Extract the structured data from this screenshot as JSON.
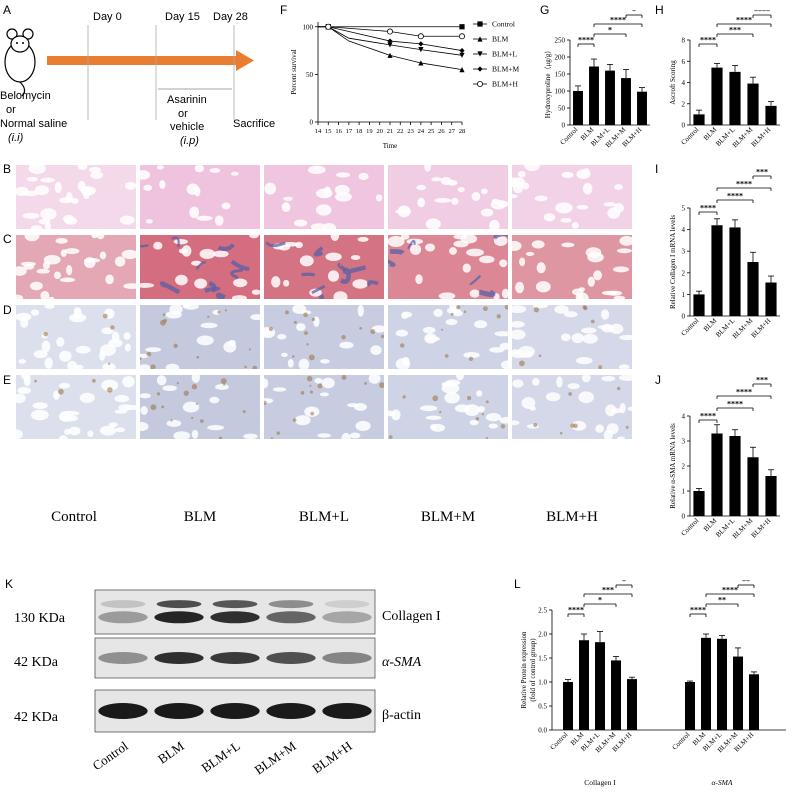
{
  "panel_labels": {
    "A": "A",
    "B": "B",
    "C": "C",
    "D": "D",
    "E": "E",
    "F": "F",
    "G": "G",
    "H": "H",
    "I": "I",
    "J": "J",
    "K": "K",
    "L": "L"
  },
  "timeline": {
    "days": [
      "Day 0",
      "Day 15",
      "Day 28"
    ],
    "bleo": [
      "Belomycin",
      "or",
      "Normal saline",
      "(i.i)"
    ],
    "asarinin": [
      "Asarinin",
      "or",
      "vehicle",
      "(i.p)"
    ],
    "sacrifice": "Sacrifice"
  },
  "group_labels": [
    "Control",
    "BLM",
    "BLM+L",
    "BLM+M",
    "BLM+H"
  ],
  "colors": {
    "arrow": "#e97d32",
    "he": "#e9a9cf",
    "masson_red": "#c53a52",
    "masson_blue": "#4d5fa8",
    "ihc": "#d9dbe8",
    "brown": "#9c6d3e"
  },
  "western": {
    "kda": [
      "130 KDa",
      "42 KDa",
      "42 KDa"
    ],
    "proteins": [
      "Collagen I",
      "α-SMA",
      "β-actin"
    ],
    "lanes": [
      "Control",
      "BLM",
      "BLM+L",
      "BLM+M",
      "BLM+H"
    ],
    "band_intensity": [
      [
        0.35,
        0.9,
        0.85,
        0.6,
        0.3
      ],
      [
        0.4,
        0.85,
        0.8,
        0.7,
        0.45
      ],
      [
        0.95,
        0.95,
        0.95,
        0.95,
        0.95
      ]
    ]
  },
  "chart_data": [
    {
      "id": "F",
      "type": "line",
      "xlabel": "Time",
      "ylabel": "Percent survival",
      "x": [
        14,
        15,
        16,
        17,
        18,
        19,
        20,
        21,
        22,
        23,
        24,
        25,
        26,
        27,
        28
      ],
      "xticks": [
        "14",
        "15",
        "16",
        "17",
        "18",
        "19",
        "20",
        "21",
        "22",
        "23",
        "24",
        "25",
        "26",
        "27",
        "28"
      ],
      "ylim": [
        0,
        105
      ],
      "yticks": [
        "0",
        "50",
        "100"
      ],
      "series": [
        {
          "name": "Control",
          "marker": "square",
          "x": [
            14,
            15,
            28
          ],
          "values": [
            100,
            100,
            100
          ]
        },
        {
          "name": "BLM",
          "marker": "triangle-up",
          "x": [
            14,
            15,
            17,
            21,
            24,
            28
          ],
          "values": [
            100,
            100,
            85,
            70,
            62,
            55
          ]
        },
        {
          "name": "BLM+L",
          "marker": "triangle-down",
          "x": [
            14,
            15,
            16,
            17,
            21,
            24,
            28
          ],
          "values": [
            100,
            100,
            94,
            88,
            81,
            76,
            70
          ]
        },
        {
          "name": "BLM+M",
          "marker": "diamond",
          "x": [
            14,
            15,
            17,
            21,
            24,
            28
          ],
          "values": [
            100,
            100,
            95,
            85,
            82,
            75
          ]
        },
        {
          "name": "BLM+H",
          "marker": "circle",
          "x": [
            14,
            15,
            21,
            24,
            28
          ],
          "values": [
            100,
            100,
            95,
            90,
            90
          ]
        }
      ],
      "legend": "right"
    },
    {
      "id": "G",
      "type": "bar",
      "ylabel": "Hydroxyproline（μg/g）",
      "categories": [
        "Control",
        "BLM",
        "BLM+L",
        "BLM+M",
        "BLM+H"
      ],
      "values": [
        100,
        172,
        160,
        138,
        98
      ],
      "errors": [
        15,
        22,
        18,
        25,
        12
      ],
      "ylim": [
        0,
        250
      ],
      "yticks": [
        "0",
        "50",
        "100",
        "150",
        "200",
        "250"
      ],
      "brackets": [
        {
          "a": 0,
          "b": 1,
          "t": "****"
        },
        {
          "a": 1,
          "b": 3,
          "t": "*"
        },
        {
          "a": 1,
          "b": 4,
          "t": "****"
        },
        {
          "a": 3,
          "b": 4,
          "t": "*"
        }
      ]
    },
    {
      "id": "H",
      "type": "bar",
      "ylabel": "Ascroft Scoring",
      "categories": [
        "Control",
        "BLM",
        "BLM+L",
        "BLM+M",
        "BLM+H"
      ],
      "values": [
        1,
        5.4,
        5,
        3.9,
        1.8
      ],
      "errors": [
        0.4,
        0.4,
        0.6,
        0.6,
        0.4
      ],
      "ylim": [
        0,
        8
      ],
      "yticks": [
        "0",
        "2",
        "4",
        "6",
        "8"
      ],
      "brackets": [
        {
          "a": 0,
          "b": 1,
          "t": "****"
        },
        {
          "a": 1,
          "b": 3,
          "t": "***"
        },
        {
          "a": 1,
          "b": 4,
          "t": "****"
        },
        {
          "a": 3,
          "b": 4,
          "t": "****"
        }
      ]
    },
    {
      "id": "I",
      "type": "bar",
      "ylabel": "Relative Collagen I mRNA levels",
      "categories": [
        "Control",
        "BLM",
        "BLM+L",
        "BLM+M",
        "BLM+H"
      ],
      "values": [
        1,
        4.2,
        4.1,
        2.5,
        1.55
      ],
      "errors": [
        0.15,
        0.3,
        0.35,
        0.45,
        0.3
      ],
      "ylim": [
        0,
        5
      ],
      "yticks": [
        "0",
        "1",
        "2",
        "3",
        "4",
        "5"
      ],
      "brackets": [
        {
          "a": 0,
          "b": 1,
          "t": "****"
        },
        {
          "a": 1,
          "b": 3,
          "t": "****"
        },
        {
          "a": 1,
          "b": 4,
          "t": "****"
        },
        {
          "a": 3,
          "b": 4,
          "t": "***"
        }
      ]
    },
    {
      "id": "J",
      "type": "bar",
      "ylabel": "Relative α-SMA mRNA levels",
      "categories": [
        "Control",
        "BLM",
        "BLM+L",
        "BLM+M",
        "BLM+H"
      ],
      "values": [
        1,
        3.3,
        3.2,
        2.35,
        1.6
      ],
      "errors": [
        0.1,
        0.35,
        0.25,
        0.4,
        0.25
      ],
      "ylim": [
        0,
        4
      ],
      "yticks": [
        "0",
        "1",
        "2",
        "3",
        "4"
      ],
      "brackets": [
        {
          "a": 0,
          "b": 1,
          "t": "****"
        },
        {
          "a": 1,
          "b": 3,
          "t": "****"
        },
        {
          "a": 1,
          "b": 4,
          "t": "****"
        },
        {
          "a": 3,
          "b": 4,
          "t": "***"
        }
      ]
    },
    {
      "id": "L",
      "type": "bar",
      "ylabel": "Relative Protein expression (fold of control group)",
      "groups": [
        "Collagen I",
        "α-SMA"
      ],
      "categories": [
        "Control",
        "BLM",
        "BLM+L",
        "BLM+M",
        "BLM+H"
      ],
      "series": [
        {
          "name": "Collagen I",
          "values": [
            1,
            1.87,
            1.83,
            1.45,
            1.06
          ],
          "errors": [
            0.05,
            0.13,
            0.22,
            0.08,
            0.04
          ]
        },
        {
          "name": "α-SMA",
          "values": [
            1,
            1.92,
            1.9,
            1.53,
            1.16
          ],
          "errors": [
            0.02,
            0.08,
            0.07,
            0.18,
            0.05
          ]
        }
      ],
      "ylim": [
        0,
        2.5
      ],
      "yticks": [
        "0.0",
        "0.5",
        "1.0",
        "1.5",
        "2.0",
        "2.5"
      ],
      "brackets": [
        {
          "g": 0,
          "a": 0,
          "b": 1,
          "t": "****"
        },
        {
          "g": 0,
          "a": 1,
          "b": 3,
          "t": "*"
        },
        {
          "g": 0,
          "a": 1,
          "b": 4,
          "t": "***"
        },
        {
          "g": 0,
          "a": 3,
          "b": 4,
          "t": "*"
        },
        {
          "g": 1,
          "a": 0,
          "b": 1,
          "t": "****"
        },
        {
          "g": 1,
          "a": 1,
          "b": 3,
          "t": "**"
        },
        {
          "g": 1,
          "a": 1,
          "b": 4,
          "t": "****"
        },
        {
          "g": 1,
          "a": 3,
          "b": 4,
          "t": "**"
        }
      ]
    }
  ]
}
